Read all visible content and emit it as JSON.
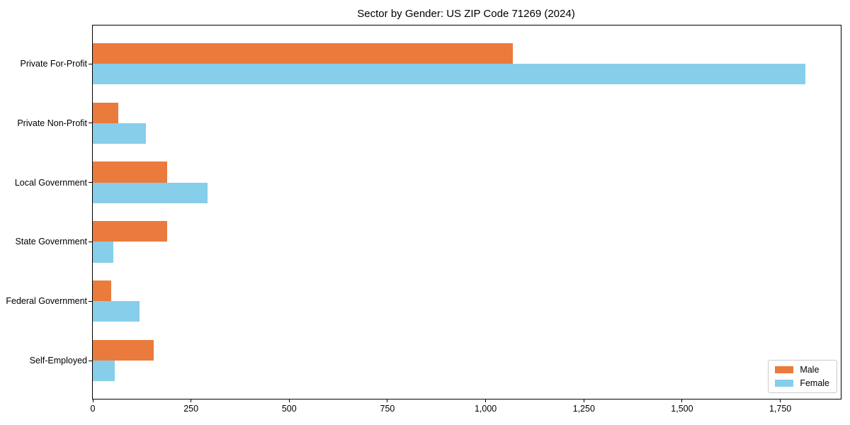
{
  "chart_data": {
    "type": "bar",
    "orientation": "horizontal",
    "title": "Sector by Gender: US ZIP Code 71269 (2024)",
    "xlabel": "",
    "ylabel": "",
    "categories": [
      "Private For-Profit",
      "Private Non-Profit",
      "Local Government",
      "State Government",
      "Federal Government",
      "Self-Employed"
    ],
    "series": [
      {
        "name": "Male",
        "color": "#EB7B3C",
        "values": [
          1070,
          65,
          189,
          189,
          47,
          155
        ]
      },
      {
        "name": "Female",
        "color": "#87CEEB",
        "values": [
          1813,
          136,
          292,
          52,
          119,
          56
        ]
      }
    ],
    "xlim": [
      0,
      1904
    ],
    "xticks": [
      0,
      250,
      500,
      750,
      1000,
      1250,
      1500,
      1750
    ],
    "xtick_labels": [
      "0",
      "250",
      "500",
      "750",
      "1,000",
      "1,250",
      "1,500",
      "1,750"
    ],
    "grid": false,
    "legend_position": "lower right",
    "colors": {
      "background": "#ffffff",
      "spine": "#000000",
      "legend_border": "#cccccc"
    }
  }
}
